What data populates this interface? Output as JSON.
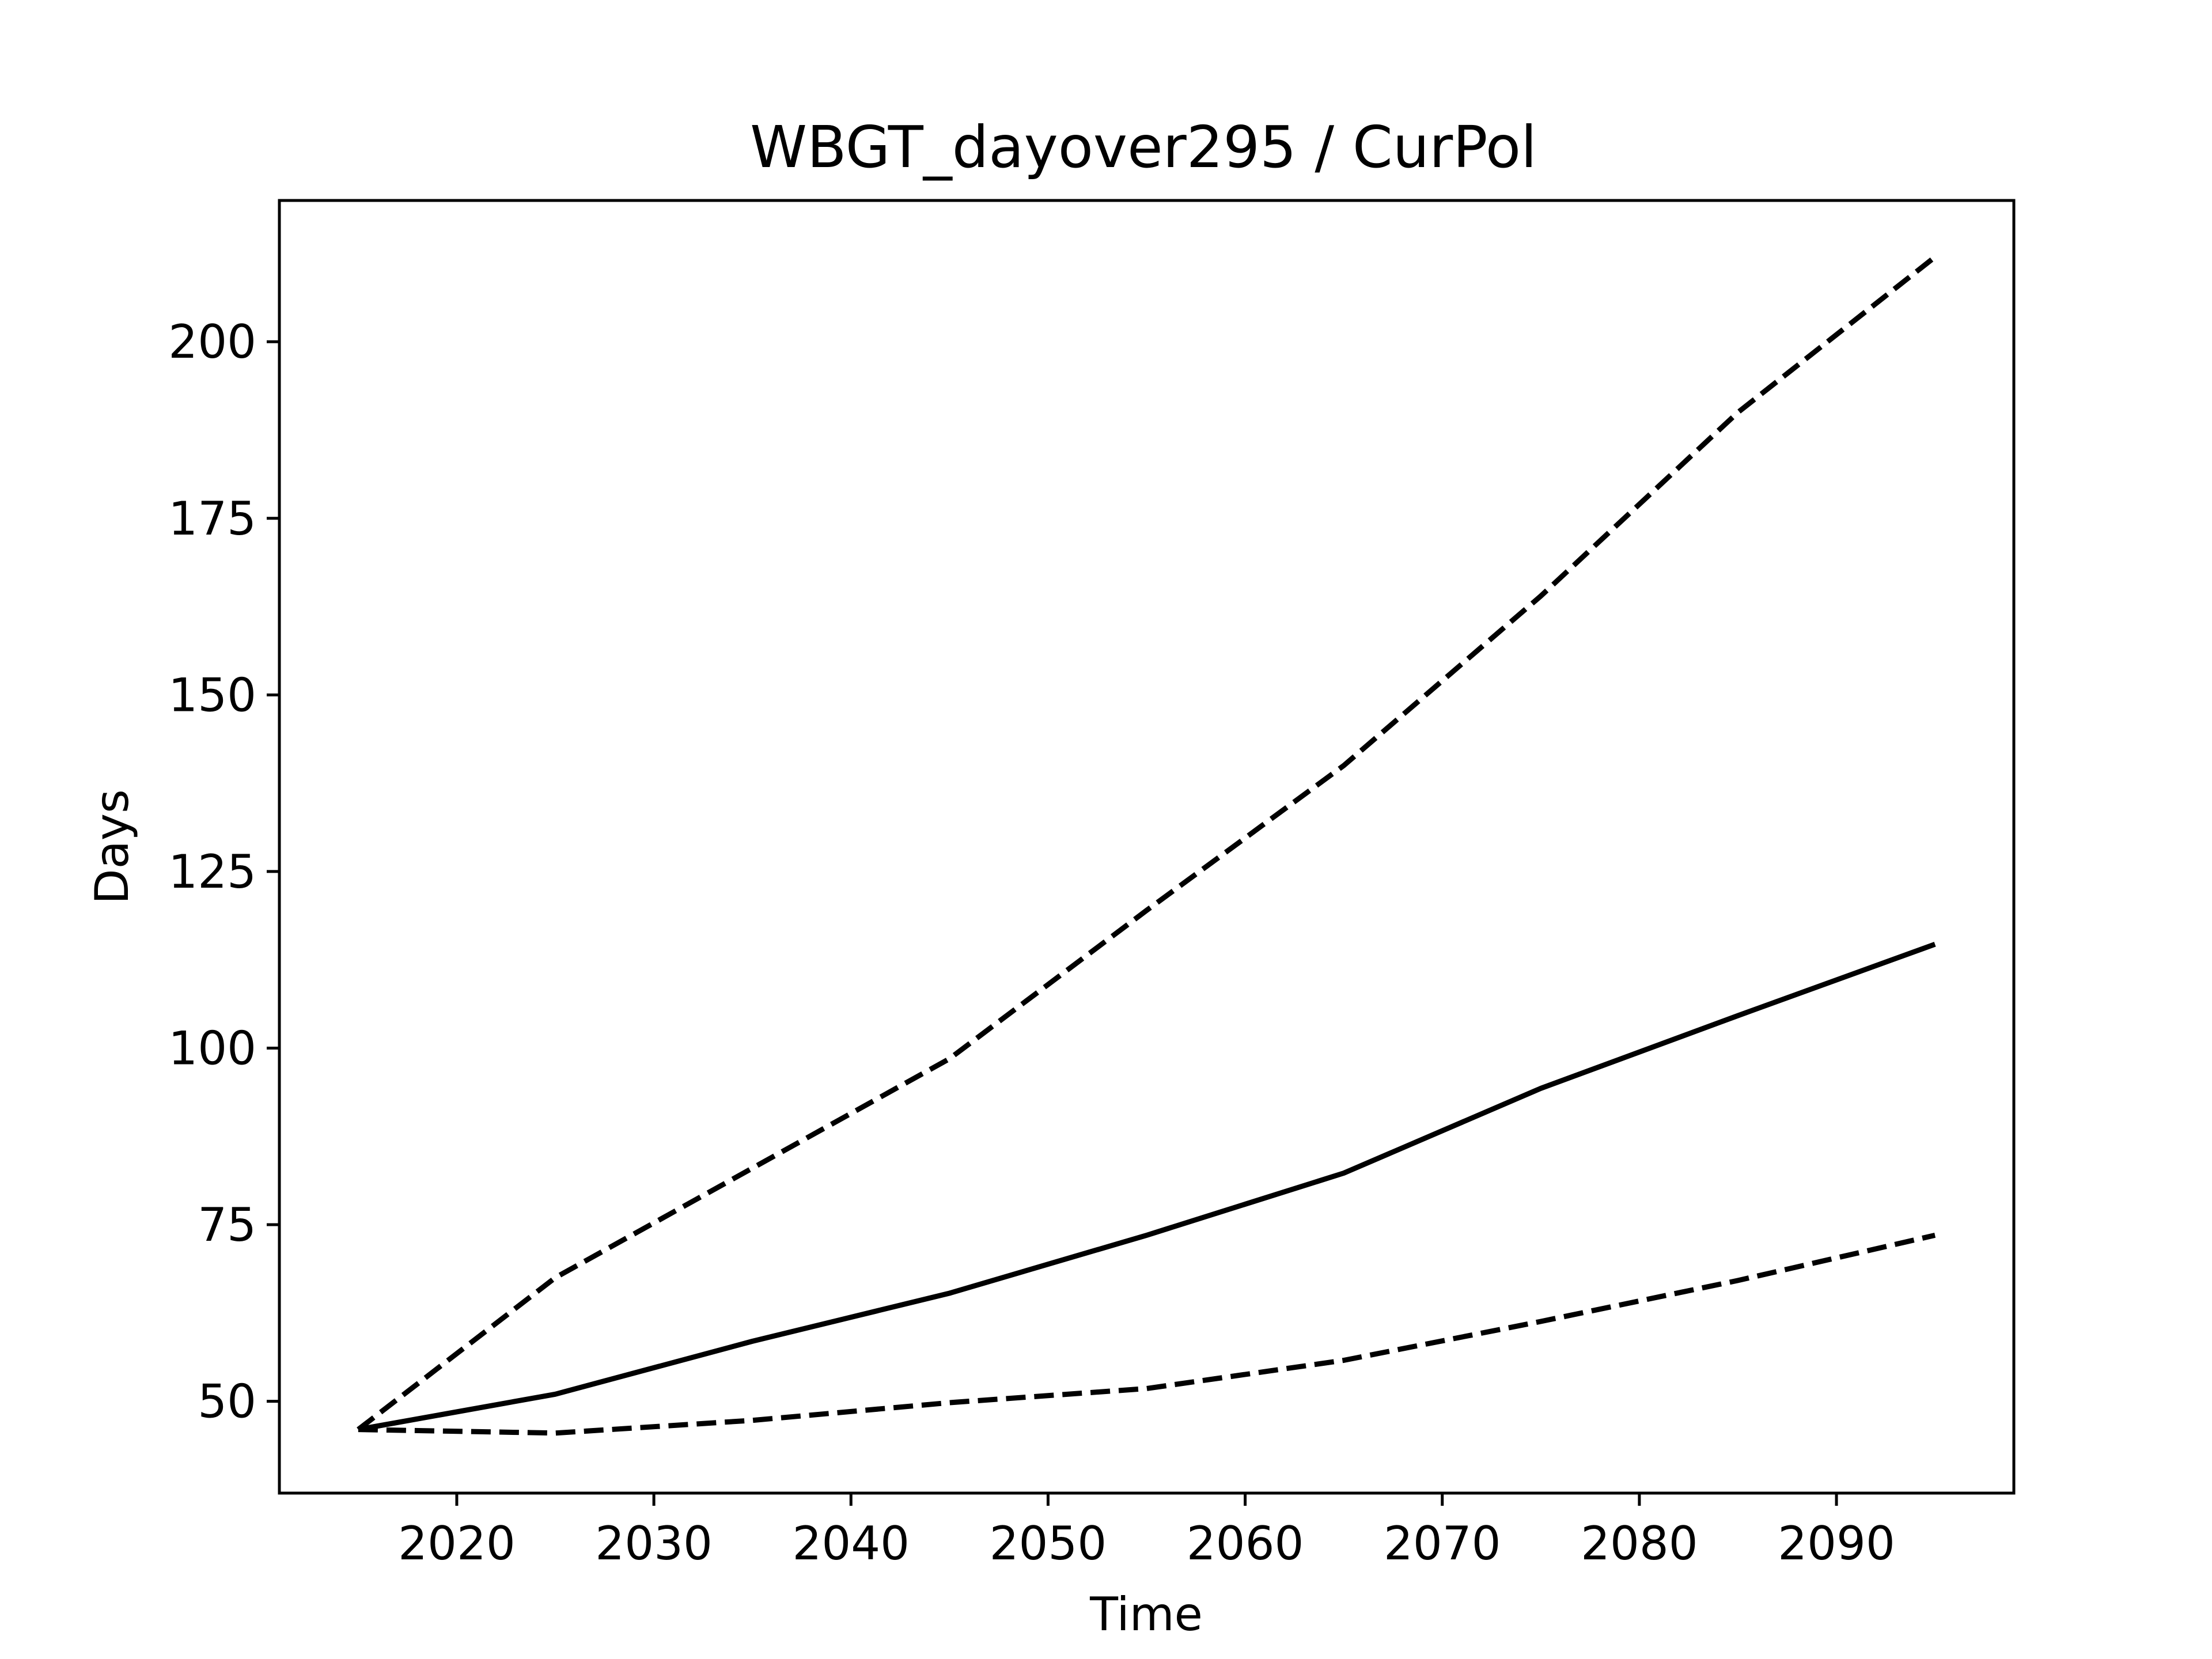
{
  "chart_data": {
    "type": "line",
    "title": "WBGT_dayover295 / CurPol",
    "xlabel": "Time",
    "ylabel": "Days",
    "xlim": [
      2011,
      2099
    ],
    "ylim": [
      37,
      220
    ],
    "x_ticks": [
      2020,
      2030,
      2040,
      2050,
      2060,
      2070,
      2080,
      2090
    ],
    "y_ticks": [
      50,
      75,
      100,
      125,
      150,
      175,
      200
    ],
    "grid": false,
    "legend": "none",
    "color": "#000000",
    "x": [
      2015,
      2025,
      2035,
      2045,
      2055,
      2065,
      2075,
      2085,
      2095
    ],
    "series": [
      {
        "style": "dashed",
        "values": [
          46,
          67.5,
          83,
          98.5,
          119.5,
          140,
          164,
          190,
          212
        ]
      },
      {
        "style": "solid",
        "values": [
          46,
          51,
          58.5,
          65.3,
          73.5,
          82.3,
          94.3,
          104.6,
          114.7
        ]
      },
      {
        "style": "dashed",
        "values": [
          46,
          45.5,
          47.3,
          49.8,
          51.8,
          55.8,
          61.3,
          67.1,
          73.5
        ]
      }
    ]
  }
}
